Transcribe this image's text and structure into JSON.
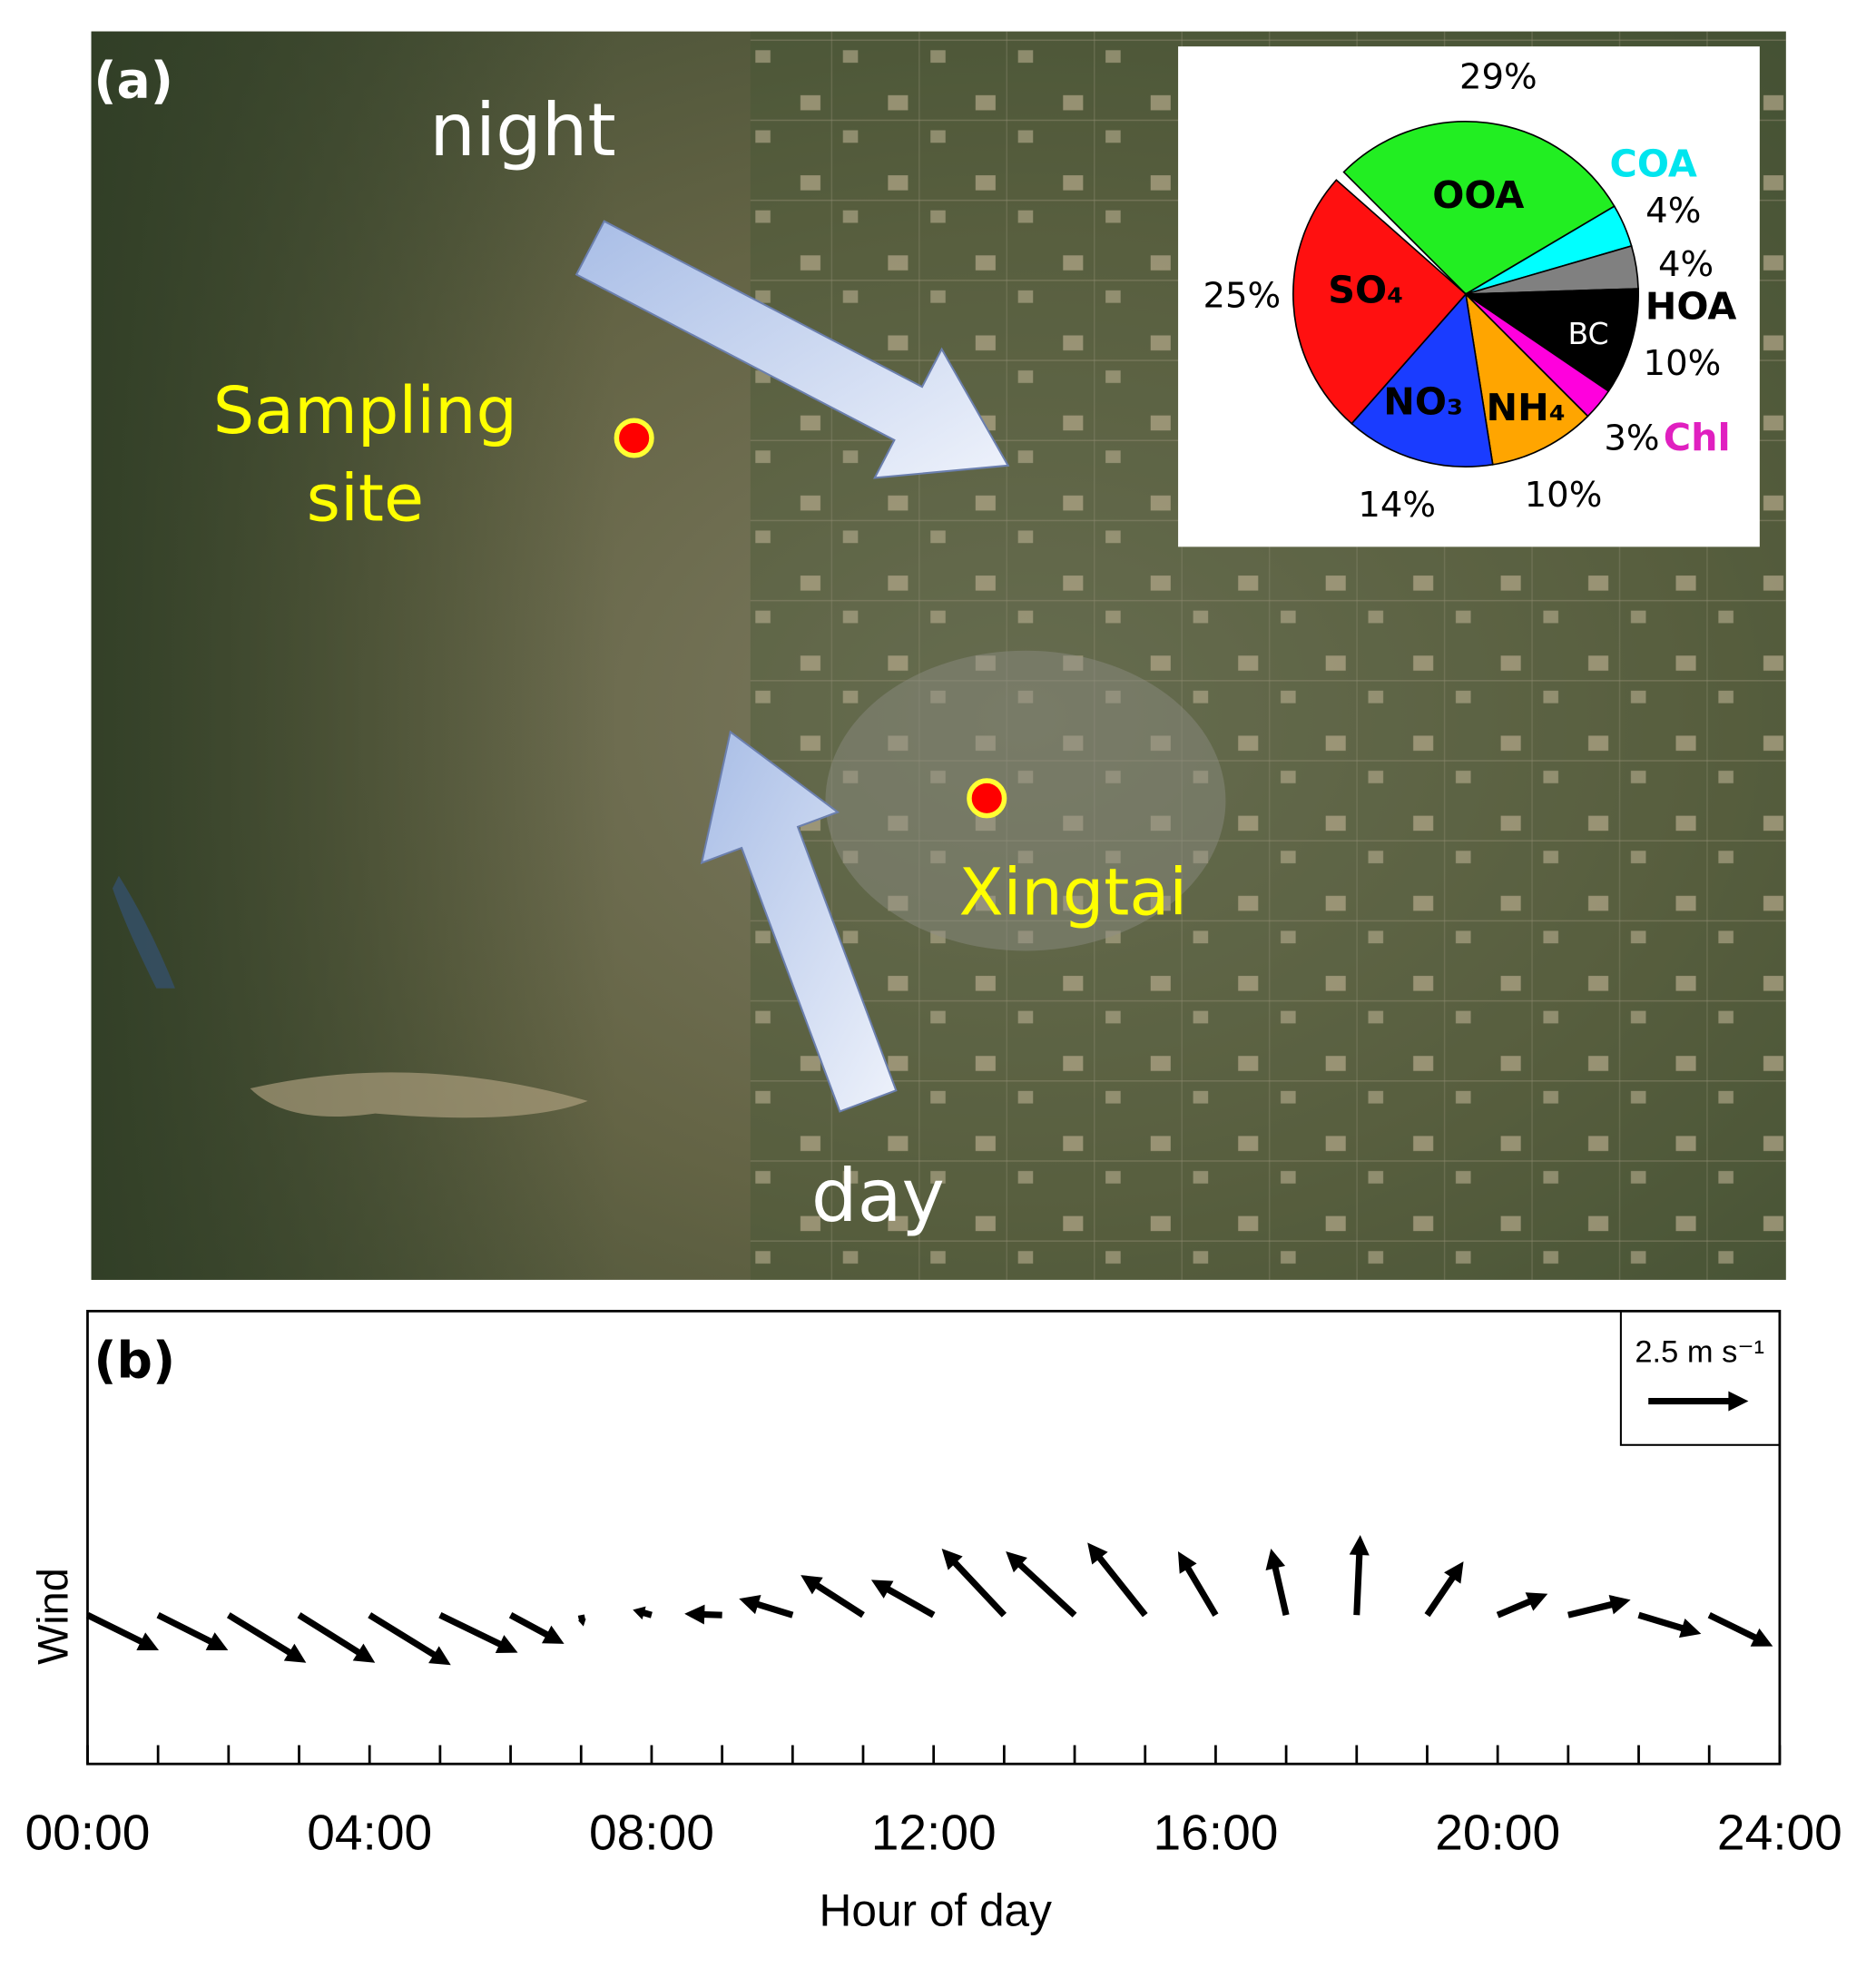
{
  "map": {
    "panel": "(a)",
    "night": "night",
    "day": "day",
    "sampling_site": [
      "Sampling",
      "site"
    ],
    "city": "Xingtai"
  },
  "chart_data": [
    {
      "type": "pie",
      "categories": [
        "OOA",
        "COA",
        "HOA",
        "BC",
        "Chl",
        "NH₄",
        "NO₃",
        "SO₄"
      ],
      "values": [
        29,
        4,
        4,
        10,
        3,
        10,
        14,
        25
      ],
      "value_labels": [
        "29%",
        "4%",
        "4%",
        "10%",
        "3%",
        "10%",
        "14%",
        "25%"
      ],
      "colors": [
        "#22ee22",
        "#00ffff",
        "#808080",
        "#000000",
        "#ff00dd",
        "#ffa500",
        "#1a3cff",
        "#ff1010"
      ]
    },
    {
      "type": "quiver",
      "panel": "(b)",
      "xlabel": "Hour of day",
      "ylabel": "Wind",
      "x": [
        0,
        1,
        2,
        3,
        4,
        5,
        6,
        7,
        8,
        9,
        10,
        11,
        12,
        13,
        14,
        15,
        16,
        17,
        18,
        19,
        20,
        21,
        22,
        23
      ],
      "u": [
        1.78,
        1.75,
        1.94,
        1.9,
        2.03,
        1.94,
        1.34,
        0.06,
        -0.47,
        -0.94,
        -1.34,
        -1.56,
        -1.56,
        -1.56,
        -1.72,
        -1.44,
        -0.94,
        -0.38,
        0.09,
        0.91,
        1.25,
        1.56,
        1.56,
        1.59
      ],
      "v": [
        -0.88,
        -0.88,
        -1.19,
        -1.19,
        -1.25,
        -0.94,
        -0.72,
        -0.28,
        0.13,
        0.03,
        0.41,
        1.0,
        0.88,
        1.66,
        1.59,
        1.81,
        1.59,
        1.66,
        2.0,
        1.34,
        0.53,
        0.38,
        -0.47,
        -0.78
      ],
      "reference": {
        "value": 2.5,
        "label": "2.5 m s⁻¹"
      },
      "color": "#000000",
      "xlim": [
        0,
        24
      ],
      "xticks": [
        {
          "value": 0,
          "label": "00:00"
        },
        {
          "value": 4,
          "label": "04:00"
        },
        {
          "value": 8,
          "label": "08:00"
        },
        {
          "value": 12,
          "label": "12:00"
        },
        {
          "value": 16,
          "label": "16:00"
        },
        {
          "value": 20,
          "label": "20:00"
        },
        {
          "value": 24,
          "label": "24:00"
        }
      ],
      "xminorticks": [
        1,
        2,
        3,
        5,
        6,
        7,
        9,
        10,
        11,
        13,
        14,
        15,
        17,
        18,
        19,
        21,
        22,
        23
      ]
    }
  ]
}
